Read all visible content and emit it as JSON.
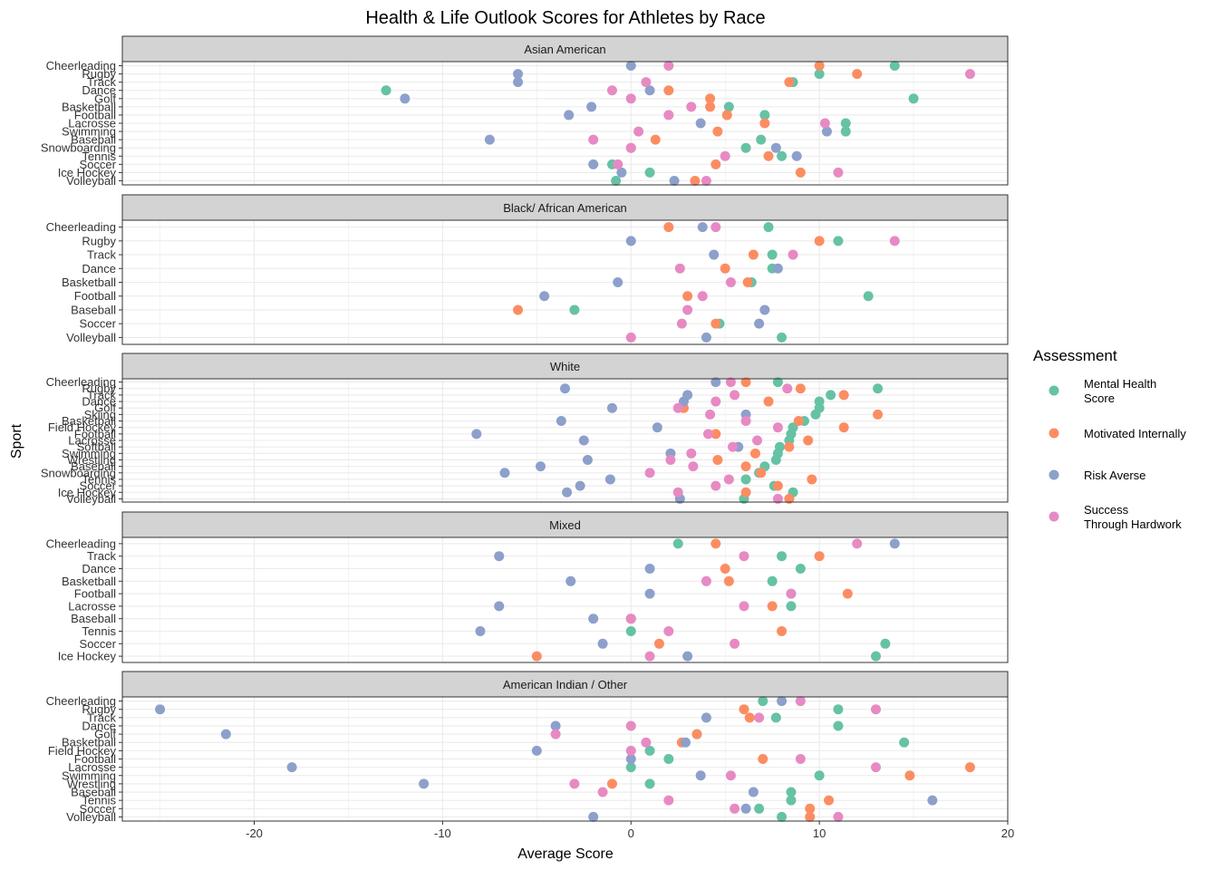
{
  "chart_data": {
    "type": "scatter",
    "title": "Health & Life Outlook Scores for Athletes by Race",
    "xlabel": "Average Score",
    "ylabel": "Sport",
    "xlim": [
      -27,
      20
    ],
    "x_ticks": [
      -20,
      -10,
      0,
      10,
      20
    ],
    "x_tick_labels": [
      "-20",
      "-10",
      "0",
      "10",
      "20"
    ],
    "grid": true,
    "legend": {
      "title": "Assessment",
      "position": "right",
      "items": [
        {
          "key": "mental",
          "label": "Mental Health\n Score",
          "color": "#66c2a5"
        },
        {
          "key": "motivated",
          "label": "Motivated Internally",
          "color": "#fc8d62"
        },
        {
          "key": "risk",
          "label": "Risk Averse",
          "color": "#8da0cb"
        },
        {
          "key": "success",
          "label": "Success\n Through Hardwork",
          "color": "#e78ac3"
        }
      ]
    },
    "panels": [
      {
        "name": "Asian American",
        "categories": [
          "Cheerleading",
          "Rugby",
          "Track",
          "Dance",
          "Golf",
          "Basketball",
          "Football",
          "Lacrosse",
          "Swimming",
          "Baseball",
          "Snowboarding",
          "Tennis",
          "Soccer",
          "Ice Hockey",
          "Volleyball"
        ],
        "series": {
          "mental": [
            14,
            10,
            8.6,
            -13,
            15,
            5.2,
            7.1,
            11.4,
            11.4,
            6.9,
            6.1,
            8,
            -1,
            1,
            -0.8
          ],
          "motivated": [
            10,
            12,
            8.4,
            2,
            4.2,
            4.2,
            5.1,
            7.1,
            4.6,
            1.3,
            0,
            7.3,
            4.5,
            9,
            3.4
          ],
          "risk": [
            0,
            -6,
            -6,
            1,
            -12,
            -2.1,
            -3.3,
            3.7,
            10.4,
            -7.5,
            7.7,
            8.8,
            -2,
            -0.5,
            2.3
          ],
          "success": [
            2,
            18,
            0.8,
            -1,
            0,
            3.2,
            2,
            10.3,
            0.4,
            -2,
            0,
            5,
            -0.7,
            11,
            4
          ]
        }
      },
      {
        "name": "Black/ African American",
        "categories": [
          "Cheerleading",
          "Rugby",
          "Track",
          "Dance",
          "Basketball",
          "Football",
          "Baseball",
          "Soccer",
          "Volleyball"
        ],
        "series": {
          "mental": [
            7.3,
            11,
            7.5,
            7.5,
            6.4,
            12.6,
            -3,
            4.7,
            8
          ],
          "motivated": [
            2,
            10,
            6.5,
            5,
            6.2,
            3,
            -6,
            4.5,
            null
          ],
          "risk": [
            3.8,
            0,
            4.4,
            7.8,
            -0.7,
            -4.6,
            7.1,
            6.8,
            4
          ],
          "success": [
            4.5,
            14,
            8.6,
            2.6,
            5.3,
            3.8,
            3,
            2.7,
            0
          ]
        }
      },
      {
        "name": "White",
        "categories": [
          "Cheerleading",
          "Rugby",
          "Track",
          "Dance",
          "Golf",
          "Skiing",
          "Basketball",
          "Field Hockey",
          "Football",
          "Lacrosse",
          "Softball",
          "Swimming",
          "Wrestling",
          "Baseball",
          "Snowboarding",
          "Tennis",
          "Soccer",
          "Ice Hockey",
          "Volleyball"
        ],
        "series": {
          "mental": [
            7.8,
            13.1,
            10.6,
            10,
            10,
            9.8,
            9.2,
            8.6,
            8.5,
            8.4,
            7.9,
            7.8,
            7.7,
            7.1,
            6.8,
            6.1,
            7.6,
            8.6,
            6
          ],
          "motivated": [
            6.1,
            9,
            11.3,
            7.3,
            2.8,
            13.1,
            8.9,
            11.3,
            4.5,
            9.4,
            8.4,
            6.6,
            4.6,
            6.1,
            6.9,
            9.6,
            7.8,
            6.1,
            8.4
          ],
          "risk": [
            4.5,
            -3.5,
            3,
            2.8,
            -1,
            6.1,
            -3.7,
            1.4,
            -8.2,
            -2.5,
            5.7,
            2.1,
            -2.3,
            -4.8,
            -6.7,
            -1.1,
            -2.7,
            -3.4,
            2.6
          ],
          "success": [
            5.3,
            8.3,
            5.5,
            4.5,
            2.5,
            4.2,
            6.1,
            7.8,
            4.1,
            6.7,
            5.4,
            3.2,
            2.1,
            3.3,
            1,
            5.2,
            4.5,
            2.5,
            7.8
          ]
        }
      },
      {
        "name": "Mixed",
        "categories": [
          "Cheerleading",
          "Track",
          "Dance",
          "Basketball",
          "Football",
          "Lacrosse",
          "Baseball",
          "Tennis",
          "Soccer",
          "Ice Hockey"
        ],
        "series": {
          "mental": [
            2.5,
            8,
            9,
            7.5,
            8.5,
            8.5,
            0,
            0,
            13.5,
            13
          ],
          "motivated": [
            4.5,
            10,
            5,
            5.2,
            11.5,
            7.5,
            0,
            8,
            1.5,
            -5
          ],
          "risk": [
            14,
            -7,
            1,
            -3.2,
            1,
            -7,
            -2,
            -8,
            -1.5,
            3
          ],
          "success": [
            12,
            6,
            null,
            4,
            8.5,
            6,
            0,
            2,
            5.5,
            1
          ]
        }
      },
      {
        "name": "American Indian / Other",
        "categories": [
          "Cheerleading",
          "Rugby",
          "Track",
          "Dance",
          "Golf",
          "Basketball",
          "Field Hockey",
          "Football",
          "Lacrosse",
          "Swimming",
          "Wrestling",
          "Baseball",
          "Tennis",
          "Soccer",
          "Volleyball"
        ],
        "series": {
          "mental": [
            7,
            11,
            7.7,
            11,
            3.5,
            14.5,
            1,
            2,
            0,
            10,
            1,
            8.5,
            8.5,
            6.8,
            8
          ],
          "motivated": [
            null,
            6,
            6.3,
            null,
            3.5,
            2.7,
            null,
            7,
            18,
            14.8,
            -1,
            null,
            10.5,
            9.5,
            9.5
          ],
          "risk": [
            8,
            -25,
            4,
            -4,
            -21.5,
            2.9,
            -5,
            0,
            -18,
            3.7,
            -11,
            6.5,
            16,
            6.1,
            -2
          ],
          "success": [
            9,
            13,
            6.8,
            0,
            -4,
            0.8,
            0,
            9,
            13,
            5.3,
            -3,
            -1.5,
            2,
            5.5,
            11
          ]
        }
      }
    ]
  }
}
